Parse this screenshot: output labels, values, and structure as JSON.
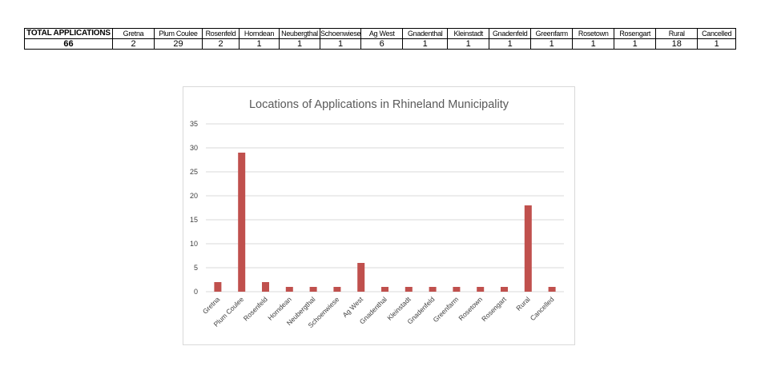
{
  "table": {
    "headers": [
      "TOTAL APPLICATIONS",
      "Gretna",
      "Plum Coulee",
      "Rosenfeld",
      "Horndean",
      "Neubergthal",
      "Schoenwiese",
      "Ag West",
      "Gnadenthal",
      "Kleinstadt",
      "Gnadenfeld",
      "Greenfarm",
      "Rosetown",
      "Rosengart",
      "Rural",
      "Cancelled"
    ],
    "values": [
      "66",
      "2",
      "29",
      "2",
      "1",
      "1",
      "1",
      "6",
      "1",
      "1",
      "1",
      "1",
      "1",
      "1",
      "18",
      "1"
    ]
  },
  "chart_data": {
    "type": "bar",
    "title": "Locations of Applications in Rhineland Municipality",
    "categories": [
      "Gretna",
      "Plum Coulee",
      "Rosenfeld",
      "Horndean",
      "Neubergthal",
      "Schoenwiese",
      "Ag West",
      "Gnadenthal",
      "Kleinstadt",
      "Gnadenfeld",
      "Greenfarm",
      "Rosetown",
      "Rosengart",
      "Rural",
      "Cancelled"
    ],
    "values": [
      2,
      29,
      2,
      1,
      1,
      1,
      6,
      1,
      1,
      1,
      1,
      1,
      1,
      18,
      1
    ],
    "yticks": [
      "0",
      "5",
      "10",
      "15",
      "20",
      "25",
      "30",
      "35"
    ],
    "ylim": [
      0,
      35
    ],
    "grid": true,
    "bar_color": "#c0504d",
    "grid_color": "#d9d9d9"
  }
}
